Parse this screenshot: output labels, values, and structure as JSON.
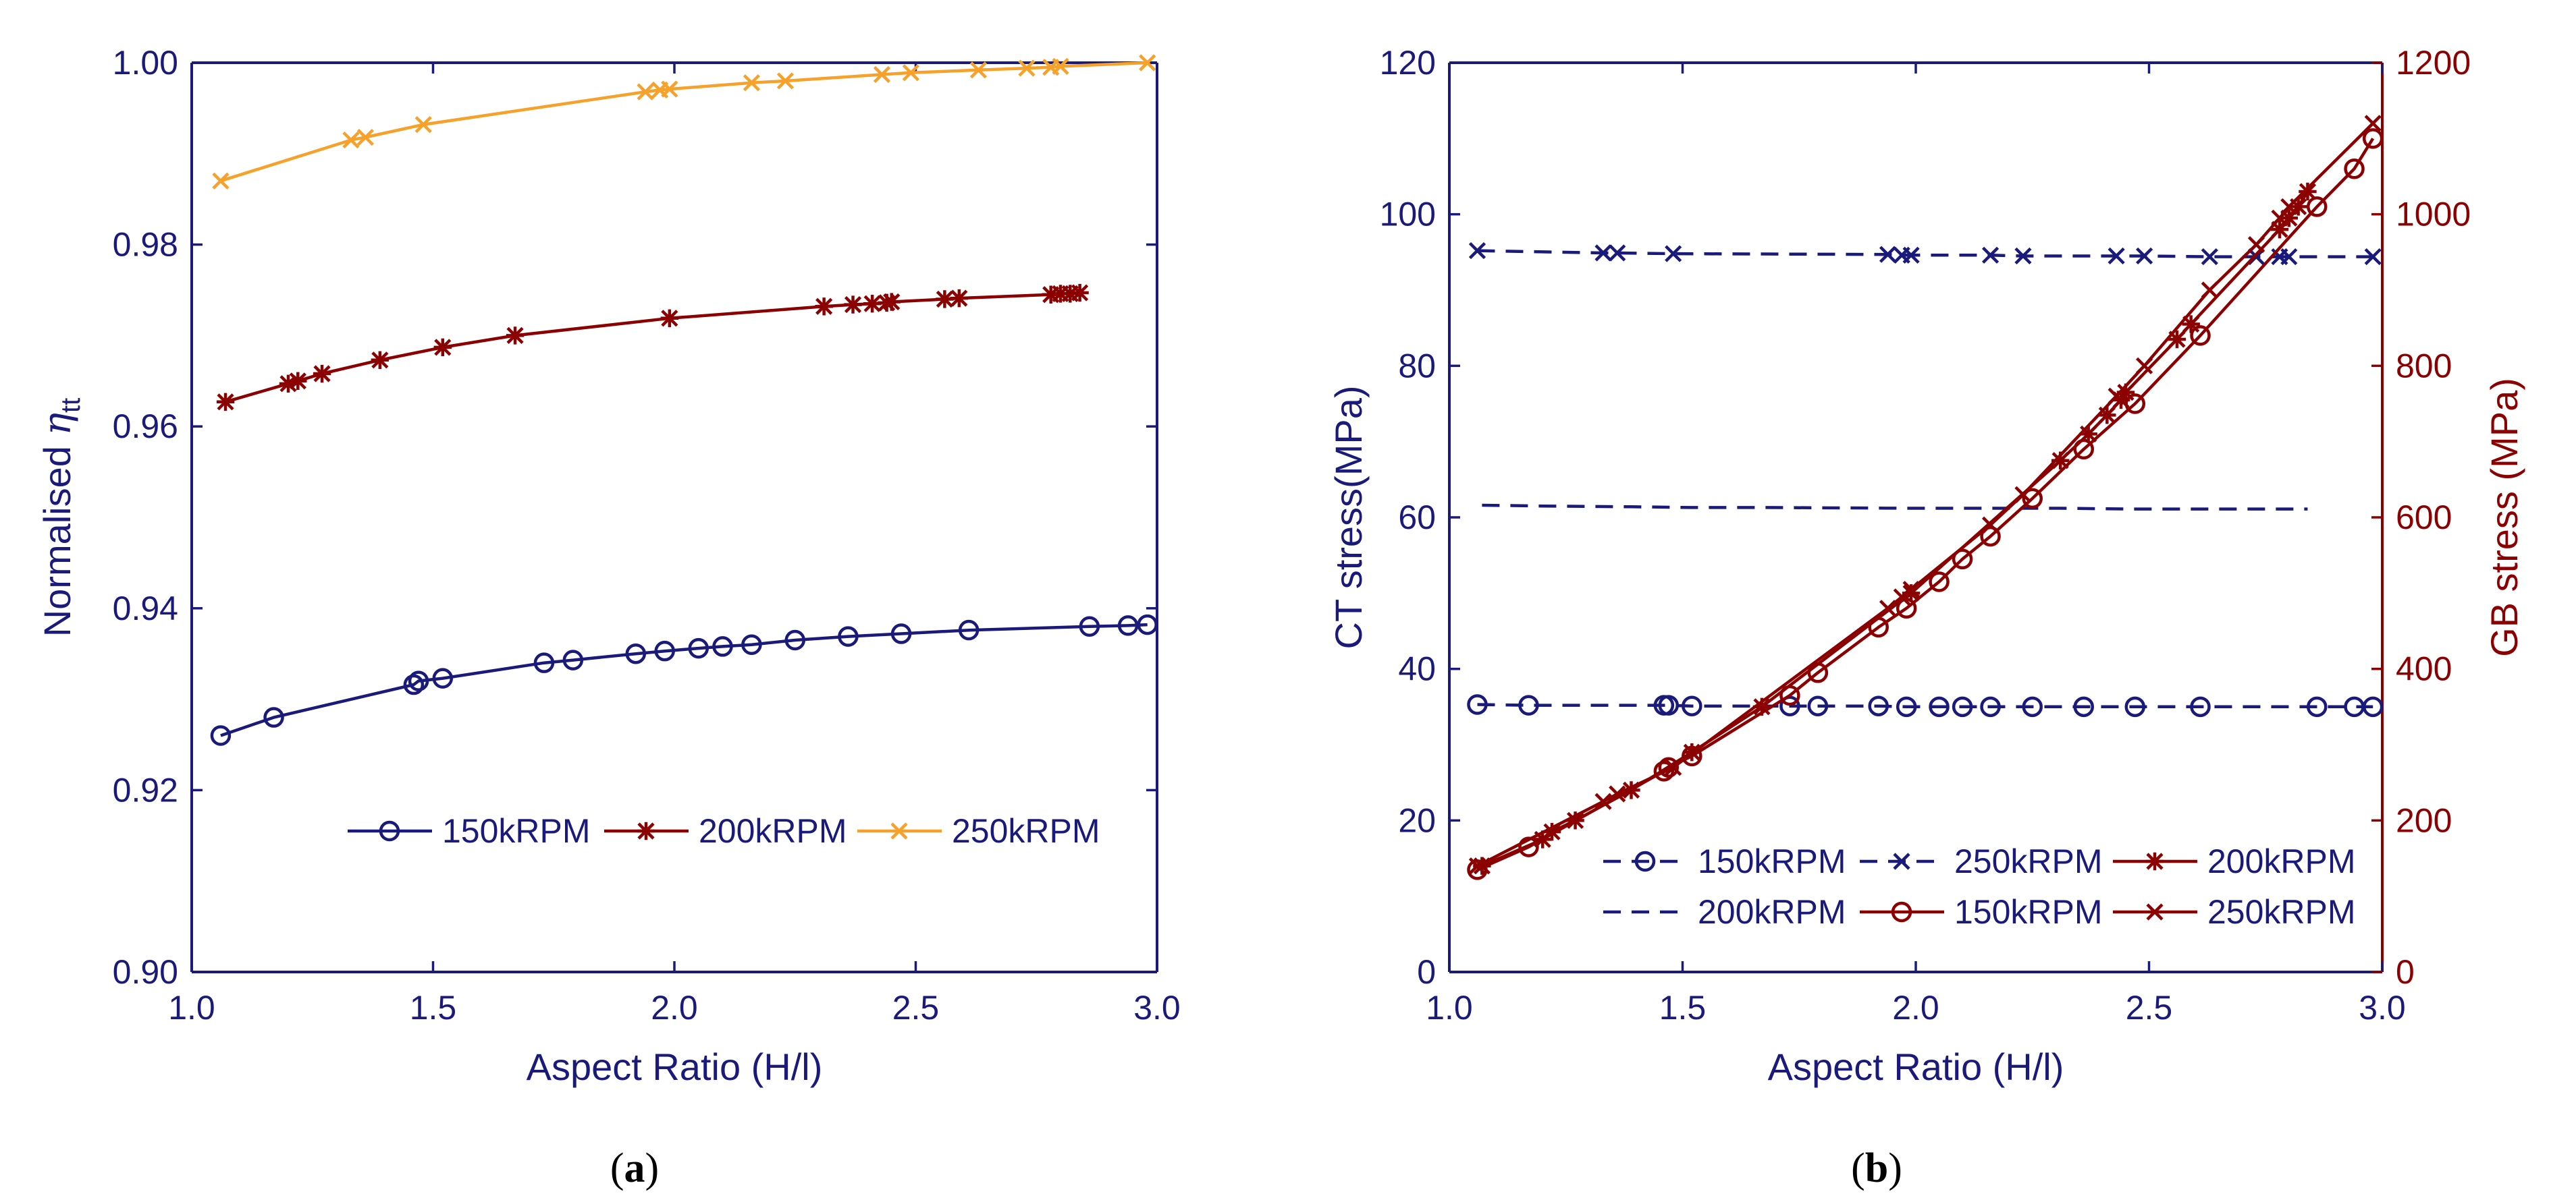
{
  "colors": {
    "blue": "#1a1a7a",
    "red": "#8b0000",
    "orange": "#f5a12a",
    "axis_blue": "#1a1a7a",
    "axis_red": "#8b0000"
  },
  "panel_labels": {
    "a": {
      "open": "(",
      "letter": "a",
      "close": ")"
    },
    "b": {
      "open": "(",
      "letter": "b",
      "close": ")"
    }
  },
  "chart_data": [
    {
      "id": "a",
      "type": "line",
      "title": "",
      "xlabel": "Aspect Ratio (H/l)",
      "ylabel": "Normalised η",
      "ylabel_main": "Normalised ",
      "ylabel_symbol": "η",
      "ylabel_subscript": "tt",
      "xlim": [
        1.0,
        3.0
      ],
      "ylim": [
        0.9,
        1.0
      ],
      "xticks": [
        "1.0",
        "1.5",
        "2.0",
        "2.5",
        "3.0"
      ],
      "yticks": [
        "0.90",
        "0.92",
        "0.94",
        "0.96",
        "0.98",
        "1.00"
      ],
      "grid": false,
      "legend_placement": "bottom-right",
      "series": [
        {
          "name": "150kRPM",
          "color": "#1a1a7a",
          "marker": "circle",
          "x": [
            1.06,
            1.17,
            1.46,
            1.47,
            1.52,
            1.73,
            1.79,
            1.92,
            1.98,
            2.05,
            2.1,
            2.16,
            2.25,
            2.36,
            2.47,
            2.61,
            2.86,
            2.94,
            2.98
          ],
          "y": [
            0.926,
            0.928,
            0.9316,
            0.932,
            0.9323,
            0.934,
            0.9343,
            0.935,
            0.9353,
            0.9356,
            0.9358,
            0.936,
            0.9365,
            0.9369,
            0.9372,
            0.9376,
            0.938,
            0.9381,
            0.9382
          ]
        },
        {
          "name": "200kRPM",
          "color": "#8b0000",
          "marker": "asterisk",
          "x": [
            1.07,
            1.2,
            1.22,
            1.27,
            1.39,
            1.52,
            1.67,
            1.99,
            2.31,
            2.37,
            2.41,
            2.44,
            2.45,
            2.56,
            2.59,
            2.78,
            2.8,
            2.82,
            2.84
          ],
          "y": [
            0.9627,
            0.9647,
            0.965,
            0.9658,
            0.9673,
            0.9687,
            0.97,
            0.9719,
            0.9732,
            0.9734,
            0.9735,
            0.9736,
            0.9737,
            0.974,
            0.9741,
            0.9745,
            0.9746,
            0.9746,
            0.9747
          ]
        },
        {
          "name": "250kRPM",
          "color": "#f5a12a",
          "marker": "x",
          "x": [
            1.06,
            1.33,
            1.36,
            1.48,
            1.94,
            1.97,
            1.99,
            2.16,
            2.23,
            2.43,
            2.49,
            2.63,
            2.73,
            2.78,
            2.8,
            2.98
          ],
          "y": [
            0.987,
            0.9915,
            0.9918,
            0.9932,
            0.9968,
            0.997,
            0.9971,
            0.9978,
            0.998,
            0.9987,
            0.9989,
            0.9992,
            0.9994,
            0.9995,
            0.9996,
            1.0
          ]
        }
      ],
      "legend": [
        {
          "name": "150kRPM",
          "color": "#1a1a7a",
          "marker": "circle",
          "dash": "solid"
        },
        {
          "name": "200kRPM",
          "color": "#8b0000",
          "marker": "asterisk",
          "dash": "solid"
        },
        {
          "name": "250kRPM",
          "color": "#f5a12a",
          "marker": "x",
          "dash": "solid"
        }
      ]
    },
    {
      "id": "b",
      "type": "line",
      "title": "",
      "xlabel": "Aspect Ratio (H/l)",
      "ylabel": "CT stress(MPa)",
      "ylabel_right": "GB stress (MPa)",
      "xlim": [
        1.0,
        3.0
      ],
      "ylim": [
        0,
        120
      ],
      "ylim_right": [
        0,
        1200
      ],
      "xticks": [
        "1.0",
        "1.5",
        "2.0",
        "2.5",
        "3.0"
      ],
      "yticks": [
        "0",
        "20",
        "40",
        "60",
        "80",
        "100",
        "120"
      ],
      "yticks_right": [
        "0",
        "200",
        "400",
        "600",
        "800",
        "1000",
        "1200"
      ],
      "grid": false,
      "legend_placement": "bottom-right",
      "series": [
        {
          "name": "150kRPM",
          "axis": "left",
          "color": "#1a1a7a",
          "marker": "circle",
          "dash": "dashed",
          "x": [
            1.06,
            1.17,
            1.46,
            1.47,
            1.52,
            1.73,
            1.79,
            1.92,
            1.98,
            2.05,
            2.1,
            2.16,
            2.25,
            2.36,
            2.47,
            2.61,
            2.86,
            2.94,
            2.98
          ],
          "y": [
            35.3,
            35.2,
            35.2,
            35.2,
            35.1,
            35.1,
            35.1,
            35.1,
            35.0,
            35.0,
            35.0,
            35.0,
            35.0,
            35.0,
            35.0,
            35.0,
            35.0,
            35.0,
            35.0
          ]
        },
        {
          "name": "200kRPM",
          "axis": "left",
          "color": "#1a1a7a",
          "marker": "none",
          "dash": "dashed",
          "x": [
            1.07,
            1.2,
            1.39,
            1.52,
            1.67,
            1.99,
            2.31,
            2.45,
            2.59,
            2.84
          ],
          "y": [
            61.6,
            61.5,
            61.4,
            61.3,
            61.3,
            61.2,
            61.2,
            61.1,
            61.1,
            61.1
          ]
        },
        {
          "name": "250kRPM",
          "axis": "left",
          "color": "#1a1a7a",
          "marker": "x",
          "dash": "dashed",
          "x": [
            1.06,
            1.33,
            1.36,
            1.48,
            1.94,
            1.97,
            1.99,
            2.16,
            2.23,
            2.43,
            2.49,
            2.63,
            2.73,
            2.78,
            2.8,
            2.98
          ],
          "y": [
            95.2,
            94.9,
            94.9,
            94.8,
            94.7,
            94.6,
            94.6,
            94.6,
            94.5,
            94.5,
            94.5,
            94.4,
            94.4,
            94.4,
            94.4,
            94.4
          ]
        },
        {
          "name": "150kRPM",
          "axis": "right",
          "color": "#8b0000",
          "marker": "circle",
          "dash": "solid",
          "x": [
            1.06,
            1.17,
            1.46,
            1.47,
            1.52,
            1.73,
            1.79,
            1.92,
            1.98,
            2.05,
            2.1,
            2.16,
            2.25,
            2.36,
            2.47,
            2.61,
            2.86,
            2.94,
            2.98
          ],
          "y": [
            135,
            165,
            265,
            270,
            285,
            365,
            395,
            455,
            480,
            515,
            545,
            575,
            625,
            690,
            750,
            840,
            1010,
            1060,
            1100
          ]
        },
        {
          "name": "200kRPM",
          "axis": "right",
          "color": "#8b0000",
          "marker": "asterisk",
          "dash": "solid",
          "x": [
            1.07,
            1.2,
            1.22,
            1.27,
            1.39,
            1.52,
            1.67,
            1.99,
            2.31,
            2.37,
            2.41,
            2.44,
            2.45,
            2.56,
            2.59,
            2.78,
            2.8,
            2.82,
            2.84
          ],
          "y": [
            140,
            175,
            185,
            200,
            240,
            290,
            350,
            500,
            675,
            710,
            735,
            755,
            765,
            835,
            855,
            980,
            995,
            1010,
            1030
          ]
        },
        {
          "name": "250kRPM",
          "axis": "right",
          "color": "#8b0000",
          "marker": "x",
          "dash": "solid",
          "x": [
            1.06,
            1.33,
            1.36,
            1.48,
            1.94,
            1.97,
            1.99,
            2.16,
            2.23,
            2.43,
            2.49,
            2.63,
            2.73,
            2.78,
            2.8,
            2.98
          ],
          "y": [
            140,
            225,
            235,
            270,
            480,
            495,
            505,
            590,
            630,
            760,
            800,
            900,
            960,
            995,
            1010,
            1120
          ]
        }
      ],
      "legend": [
        {
          "name": "150kRPM",
          "color": "#1a1a7a",
          "marker": "circle",
          "dash": "dashed"
        },
        {
          "name": "250kRPM",
          "color": "#1a1a7a",
          "marker": "x",
          "dash": "dashed"
        },
        {
          "name": "200kRPM",
          "color": "#8b0000",
          "marker": "asterisk",
          "dash": "solid"
        },
        {
          "name": "200kRPM",
          "color": "#1a1a7a",
          "marker": "none",
          "dash": "dashed"
        },
        {
          "name": "150kRPM",
          "color": "#8b0000",
          "marker": "circle",
          "dash": "solid"
        },
        {
          "name": "250kRPM",
          "color": "#8b0000",
          "marker": "x",
          "dash": "solid"
        }
      ]
    }
  ]
}
